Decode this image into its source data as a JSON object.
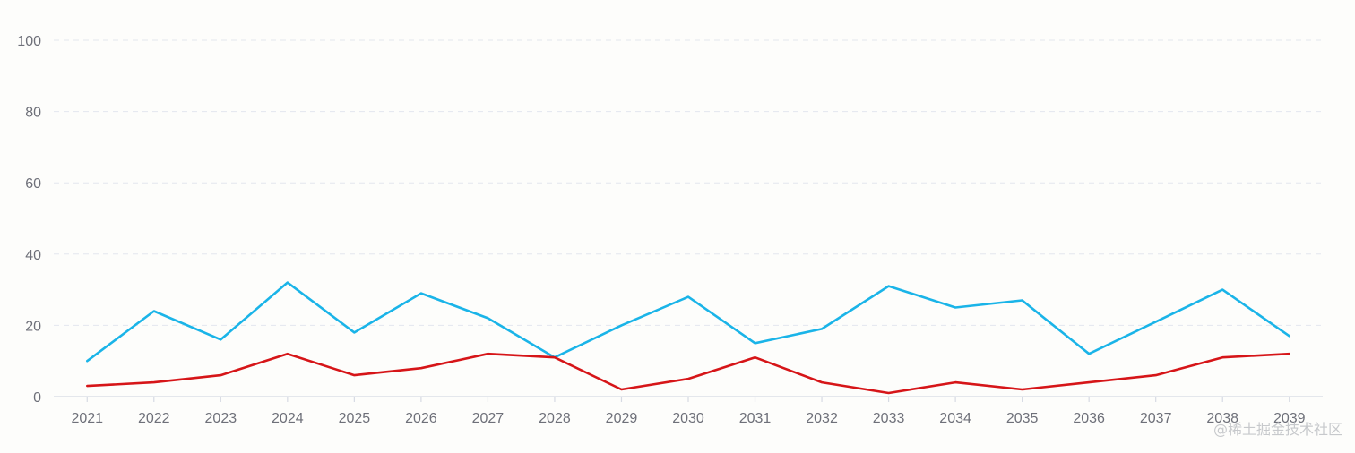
{
  "chart_data": {
    "type": "line",
    "title": "",
    "xlabel": "",
    "ylabel": "",
    "x": [
      "2021",
      "2022",
      "2023",
      "2024",
      "2025",
      "2026",
      "2027",
      "2028",
      "2029",
      "2030",
      "2031",
      "2032",
      "2033",
      "2034",
      "2035",
      "2036",
      "2037",
      "2038",
      "2039"
    ],
    "ylim": [
      0,
      100
    ],
    "yticks": [
      0,
      20,
      40,
      60,
      80,
      100
    ],
    "grid": true,
    "legend": "none",
    "series": [
      {
        "color": "#1ab4e8",
        "values": [
          10,
          24,
          16,
          32,
          18,
          29,
          22,
          11,
          20,
          28,
          15,
          19,
          31,
          25,
          27,
          12,
          21,
          30,
          17
        ]
      },
      {
        "color": "#d61518",
        "values": [
          3,
          4,
          6,
          12,
          6,
          8,
          12,
          11,
          2,
          5,
          11,
          4,
          1,
          4,
          2,
          4,
          6,
          11,
          12
        ]
      }
    ]
  },
  "watermark": "@稀土掘金技术社区"
}
